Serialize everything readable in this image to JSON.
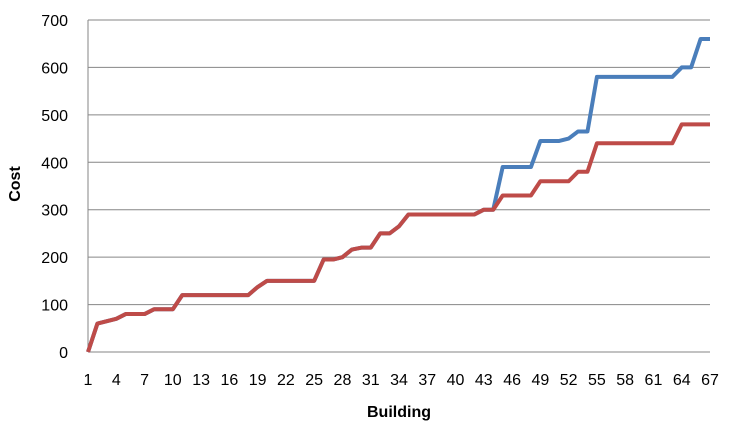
{
  "chart_data": {
    "type": "line",
    "title": "",
    "xlabel": "Building",
    "ylabel": "Cost",
    "ylim": [
      0,
      700
    ],
    "yticks": [
      "0",
      "100",
      "200",
      "300",
      "400",
      "500",
      "600",
      "700"
    ],
    "xlim": [
      1,
      67
    ],
    "xticks": [
      "1",
      "4",
      "7",
      "10",
      "13",
      "16",
      "19",
      "22",
      "25",
      "28",
      "31",
      "34",
      "37",
      "40",
      "43",
      "46",
      "49",
      "52",
      "55",
      "58",
      "61",
      "64",
      "67"
    ],
    "grid": true,
    "legend": "none",
    "series": [
      {
        "color": "#4a7ebb",
        "values": [
          0,
          60,
          65,
          70,
          80,
          80,
          80,
          90,
          90,
          90,
          120,
          120,
          120,
          120,
          120,
          120,
          120,
          120,
          137,
          150,
          150,
          150,
          150,
          150,
          150,
          195,
          195,
          200,
          216,
          220,
          220,
          250,
          250,
          265,
          290,
          290,
          290,
          290,
          290,
          290,
          290,
          290,
          300,
          300,
          390,
          390,
          390,
          390,
          445,
          445,
          445,
          450,
          465,
          465,
          580,
          580,
          580,
          580,
          580,
          580,
          580,
          580,
          580,
          600,
          600,
          660,
          660
        ]
      },
      {
        "color": "#be4b48",
        "values": [
          0,
          60,
          65,
          70,
          80,
          80,
          80,
          90,
          90,
          90,
          120,
          120,
          120,
          120,
          120,
          120,
          120,
          120,
          137,
          150,
          150,
          150,
          150,
          150,
          150,
          195,
          195,
          200,
          216,
          220,
          220,
          250,
          250,
          265,
          290,
          290,
          290,
          290,
          290,
          290,
          290,
          290,
          300,
          300,
          330,
          330,
          330,
          330,
          360,
          360,
          360,
          360,
          380,
          380,
          440,
          440,
          440,
          440,
          440,
          440,
          440,
          440,
          440,
          480,
          480,
          480,
          480
        ]
      }
    ]
  }
}
